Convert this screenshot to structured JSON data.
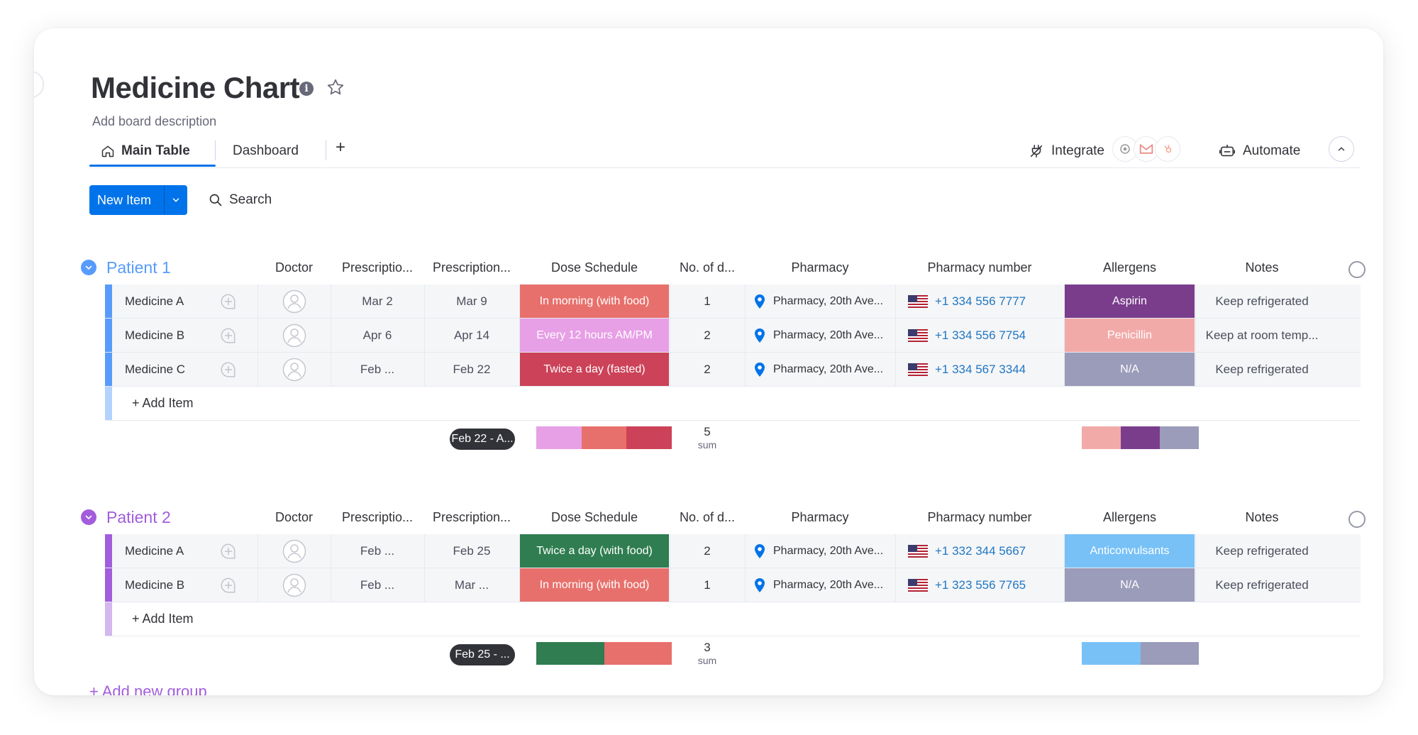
{
  "board": {
    "title": "Medicine Chart",
    "description": "Add board description"
  },
  "tabs": {
    "main": "Main Table",
    "dashboard": "Dashboard",
    "add": "+"
  },
  "toolbar": {
    "integrate": "Integrate",
    "automate": "Automate",
    "new_item": "New Item",
    "search": "Search"
  },
  "columns": [
    "Doctor",
    "Prescriptio...",
    "Prescription...",
    "Dose Schedule",
    "No. of d...",
    "Pharmacy",
    "Pharmacy number",
    "Allergens",
    "Notes"
  ],
  "colors": {
    "accent": "#0073ea",
    "group1": "#579bfc",
    "group2": "#a25ddc",
    "salmon": "#e8706c",
    "pink": "#e79fe6",
    "red": "#cc4258",
    "green": "#2f7d50",
    "purple": "#784bd1",
    "plum": "#7a3d8c",
    "rose": "#f2aaa8",
    "gray": "#9b9bba",
    "sky": "#78c1f7"
  },
  "groups": [
    {
      "title": "Patient 1",
      "color": "#579bfc",
      "add_item": "+ Add Item",
      "rows": [
        {
          "name": "Medicine A",
          "start": "Mar 2",
          "end": "Mar 9",
          "dose": "In morning (with food)",
          "dose_color": "#e8706c",
          "count": "1",
          "pharmacy": "Pharmacy, 20th Ave...",
          "phone": "+1 334 556 7777",
          "allergen": "Aspirin",
          "allergen_color": "#7a3d8c",
          "notes": "Keep refrigerated"
        },
        {
          "name": "Medicine B",
          "start": "Apr 6",
          "end": "Apr 14",
          "dose": "Every 12 hours AM/PM",
          "dose_color": "#e79fe6",
          "count": "2",
          "pharmacy": "Pharmacy, 20th Ave...",
          "phone": "+1 334 556 7754",
          "allergen": "Penicillin",
          "allergen_color": "#f2aaa8",
          "notes": "Keep at room temp..."
        },
        {
          "name": "Medicine C",
          "start": "Feb ...",
          "end": "Feb 22",
          "dose": "Twice a day (fasted)",
          "dose_color": "#cc4258",
          "count": "2",
          "pharmacy": "Pharmacy, 20th Ave...",
          "phone": "+1 334 567 3344",
          "allergen": "N/A",
          "allergen_color": "#9b9bba",
          "notes": "Keep refrigerated"
        }
      ],
      "summary": {
        "timeline": "Feb 22 - A...",
        "sum_value": "5",
        "sum_label": "sum",
        "dose_segments": [
          {
            "color": "#e79fe6",
            "share": 0.333
          },
          {
            "color": "#e8706c",
            "share": 0.333
          },
          {
            "color": "#cc4258",
            "share": 0.334
          }
        ],
        "allergen_segments": [
          {
            "color": "#f2aaa8",
            "share": 0.333
          },
          {
            "color": "#7a3d8c",
            "share": 0.333
          },
          {
            "color": "#9b9bba",
            "share": 0.334
          }
        ]
      }
    },
    {
      "title": "Patient 2",
      "color": "#a25ddc",
      "add_item": "+ Add Item",
      "rows": [
        {
          "name": "Medicine A",
          "start": "Feb ...",
          "end": "Feb 25",
          "dose": "Twice a day (with food)",
          "dose_color": "#2f7d50",
          "count": "2",
          "pharmacy": "Pharmacy, 20th Ave...",
          "phone": "+1 332 344 5667",
          "allergen": "Anticonvulsants",
          "allergen_color": "#78c1f7",
          "notes": "Keep refrigerated"
        },
        {
          "name": "Medicine B",
          "start": "Feb ...",
          "end": "Mar ...",
          "dose": "In morning (with food)",
          "dose_color": "#e8706c",
          "count": "1",
          "pharmacy": "Pharmacy, 20th Ave...",
          "phone": "+1 323 556 7765",
          "allergen": "N/A",
          "allergen_color": "#9b9bba",
          "notes": "Keep refrigerated"
        }
      ],
      "summary": {
        "timeline": "Feb 25 - ...",
        "sum_value": "3",
        "sum_label": "sum",
        "dose_segments": [
          {
            "color": "#2f7d50",
            "share": 0.5
          },
          {
            "color": "#e8706c",
            "share": 0.5
          }
        ],
        "allergen_segments": [
          {
            "color": "#78c1f7",
            "share": 0.5
          },
          {
            "color": "#9b9bba",
            "share": 0.5
          }
        ]
      }
    }
  ],
  "add_group": "+ Add new group"
}
